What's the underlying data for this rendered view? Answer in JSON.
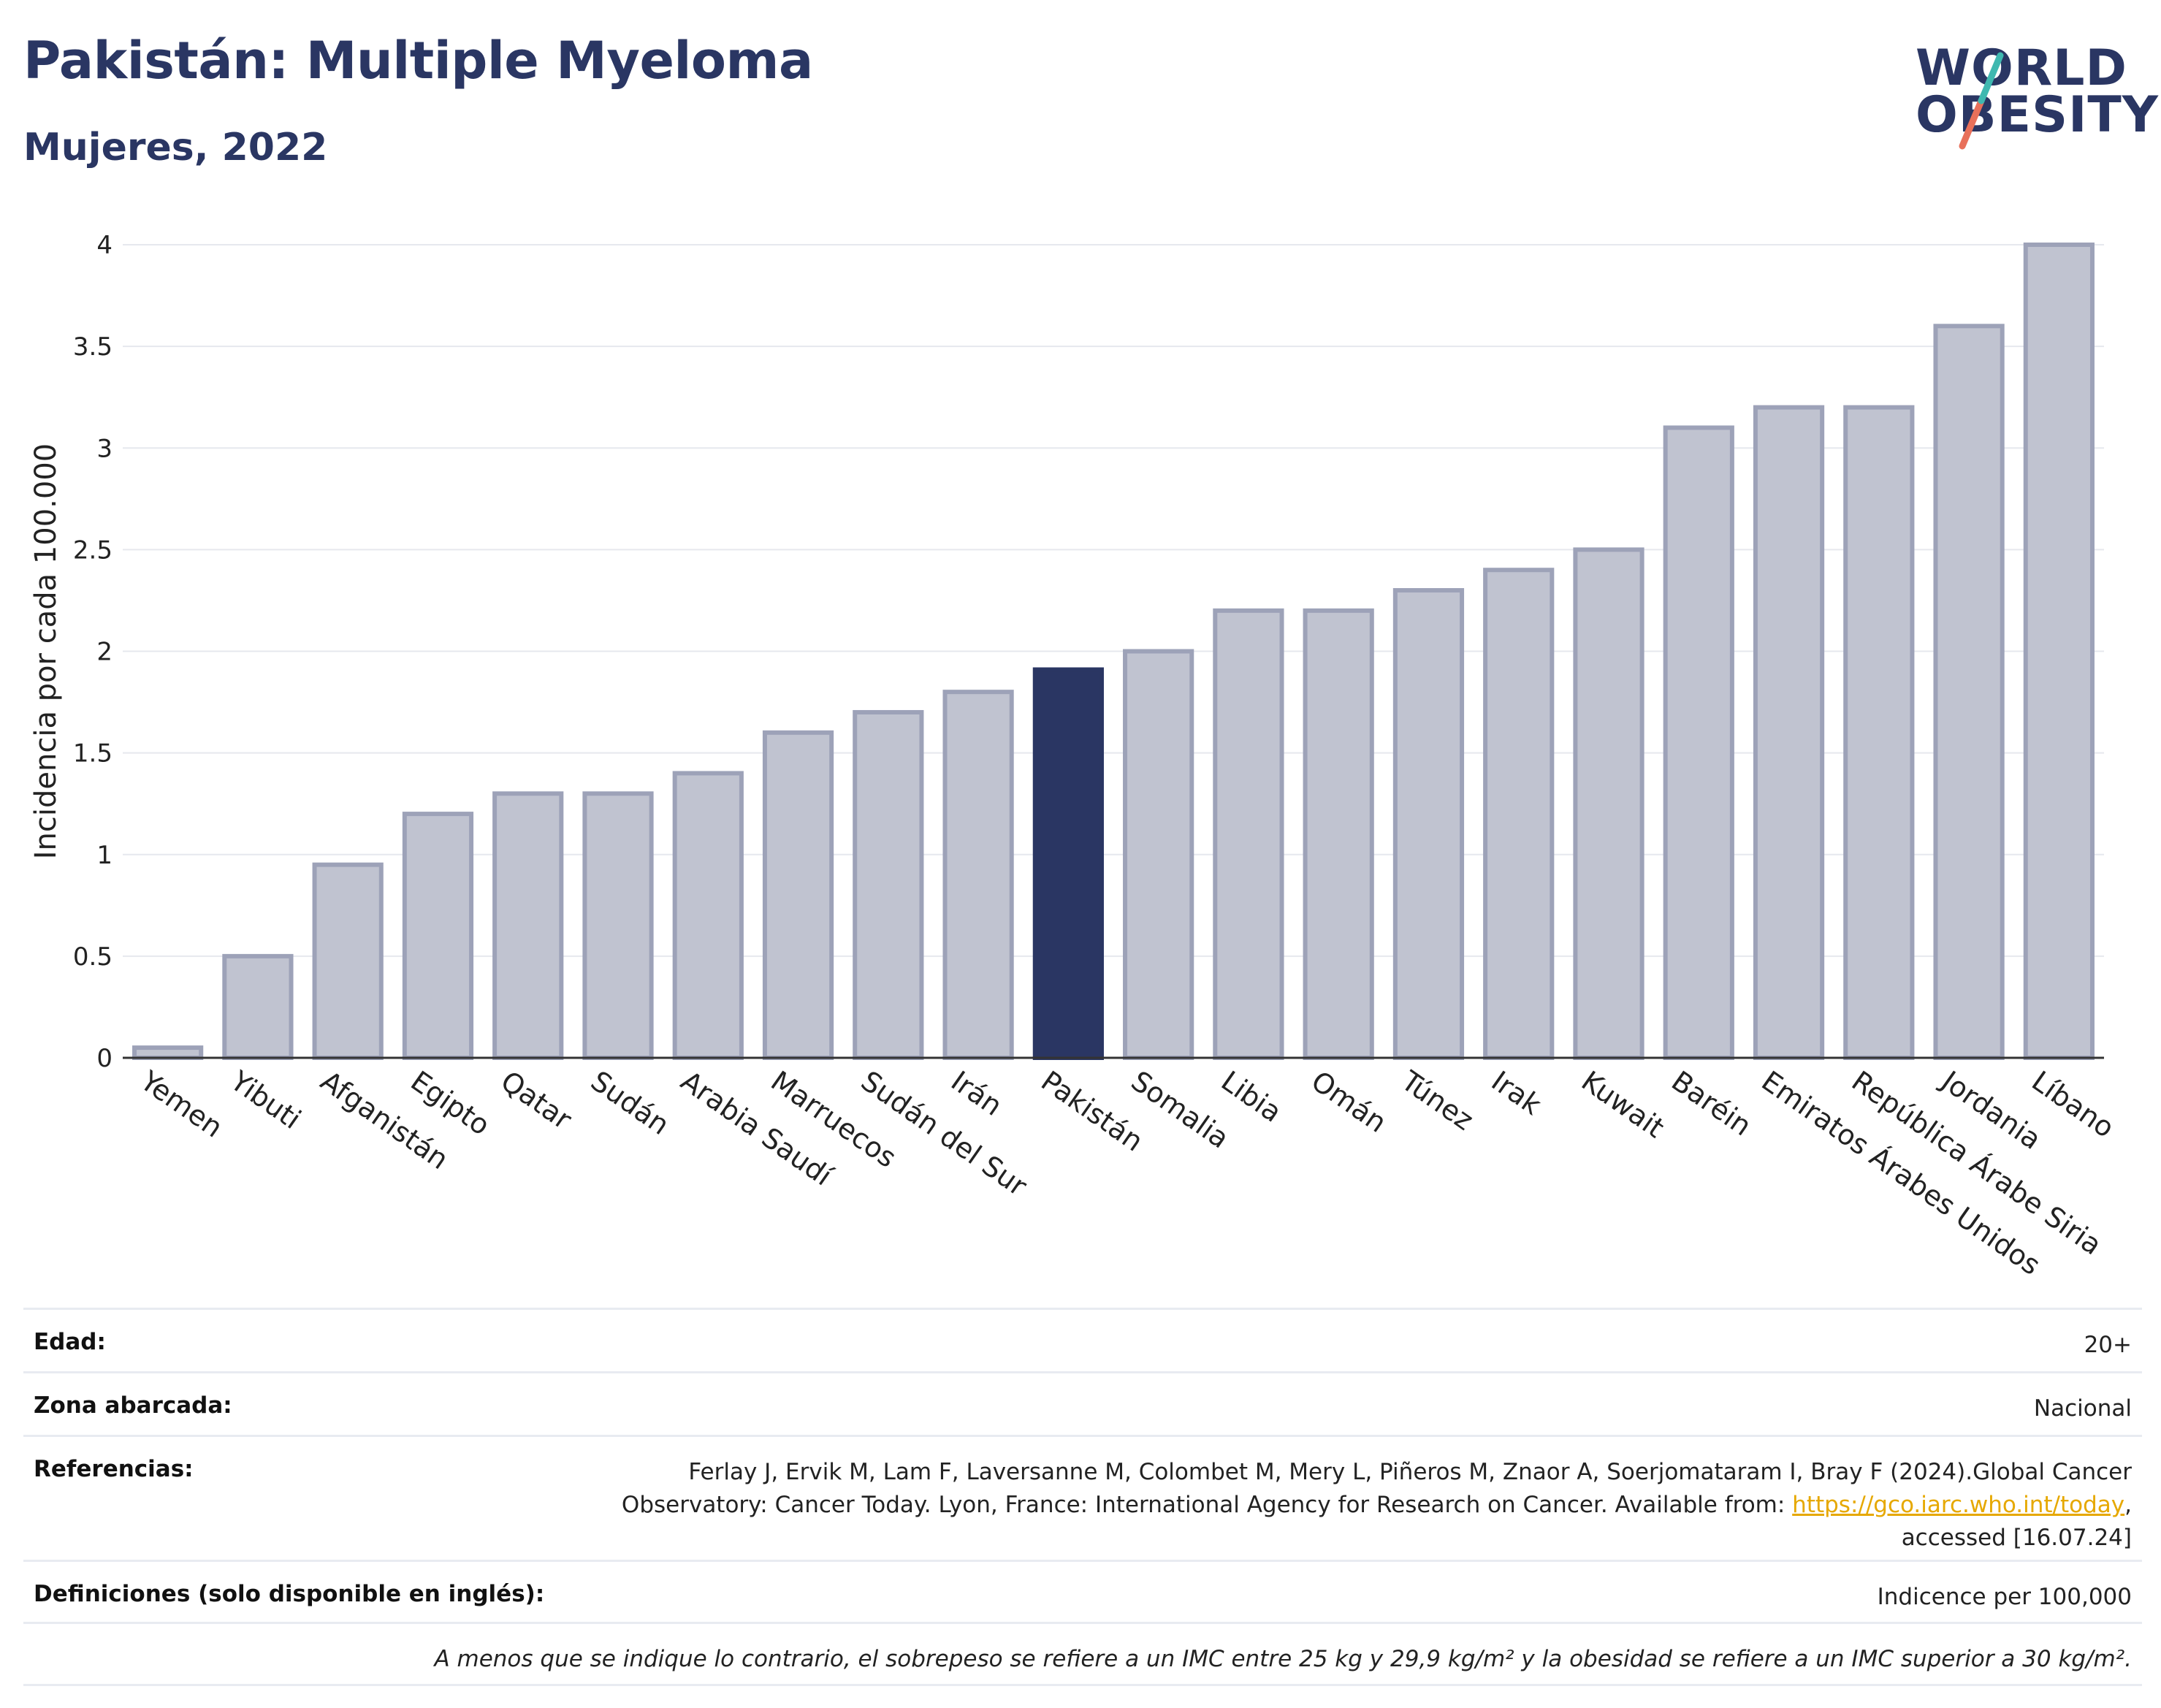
{
  "header": {
    "title": "Pakistán: Multiple Myeloma",
    "subtitle": "Mujeres, 2022"
  },
  "logo": {
    "line1": "WORLD",
    "line2": "OBESITY"
  },
  "chart_data": {
    "type": "bar",
    "ylabel": "Incidencia por cada 100.000",
    "ylim": [
      0,
      4
    ],
    "yticks": [
      "0",
      "0.5",
      "1",
      "1.5",
      "2",
      "2.5",
      "3",
      "3.5",
      "4"
    ],
    "grid": true,
    "highlight": "Pakistán",
    "colors": {
      "bar": "#c0c3d0",
      "bar_edge": "#9da2b8",
      "highlight": "#2a3663"
    },
    "categories": [
      "Yemen",
      "Yibuti",
      "Afganistán",
      "Egipto",
      "Qatar",
      "Sudán",
      "Arabia Saudí",
      "Marruecos",
      "Sudán del Sur",
      "Irán",
      "Pakistán",
      "Somalia",
      "Libia",
      "Omán",
      "Túnez",
      "Irak",
      "Kuwait",
      "Baréin",
      "Emiratos Árabes Unidos",
      "República Árabe Siria",
      "Jordania",
      "Líbano"
    ],
    "values": [
      0.05,
      0.5,
      0.95,
      1.2,
      1.3,
      1.3,
      1.4,
      1.6,
      1.7,
      1.8,
      1.91,
      2.0,
      2.2,
      2.2,
      2.3,
      2.4,
      2.5,
      3.1,
      3.2,
      3.2,
      3.6,
      4.0
    ]
  },
  "info": {
    "age_label": "Edad:",
    "age_value": "20+",
    "area_label": "Zona abarcada:",
    "area_value": "Nacional",
    "ref_label": "Referencias:",
    "ref_line1": "Ferlay J, Ervik M, Lam F, Laversanne M, Colombet M, Mery L, Piñeros M, Znaor A, Soerjomataram I, Bray F (2024).Global Cancer",
    "ref_line2_pre": "Observatory: Cancer Today. Lyon, France: International Agency for Research on Cancer. Available from: ",
    "ref_link": "https://gco.iarc.who.int/today",
    "ref_line2_post": ",",
    "ref_line3": "accessed [16.07.24]",
    "def_label": "Definiciones (solo disponible en inglés):",
    "def_value": "Indicence per 100,000",
    "footnote": "A menos que se indique lo contrario, el sobrepeso se refiere a un IMC entre 25 kg y 29,9 kg/m² y la obesidad se refiere a un IMC superior a 30 kg/m²."
  }
}
